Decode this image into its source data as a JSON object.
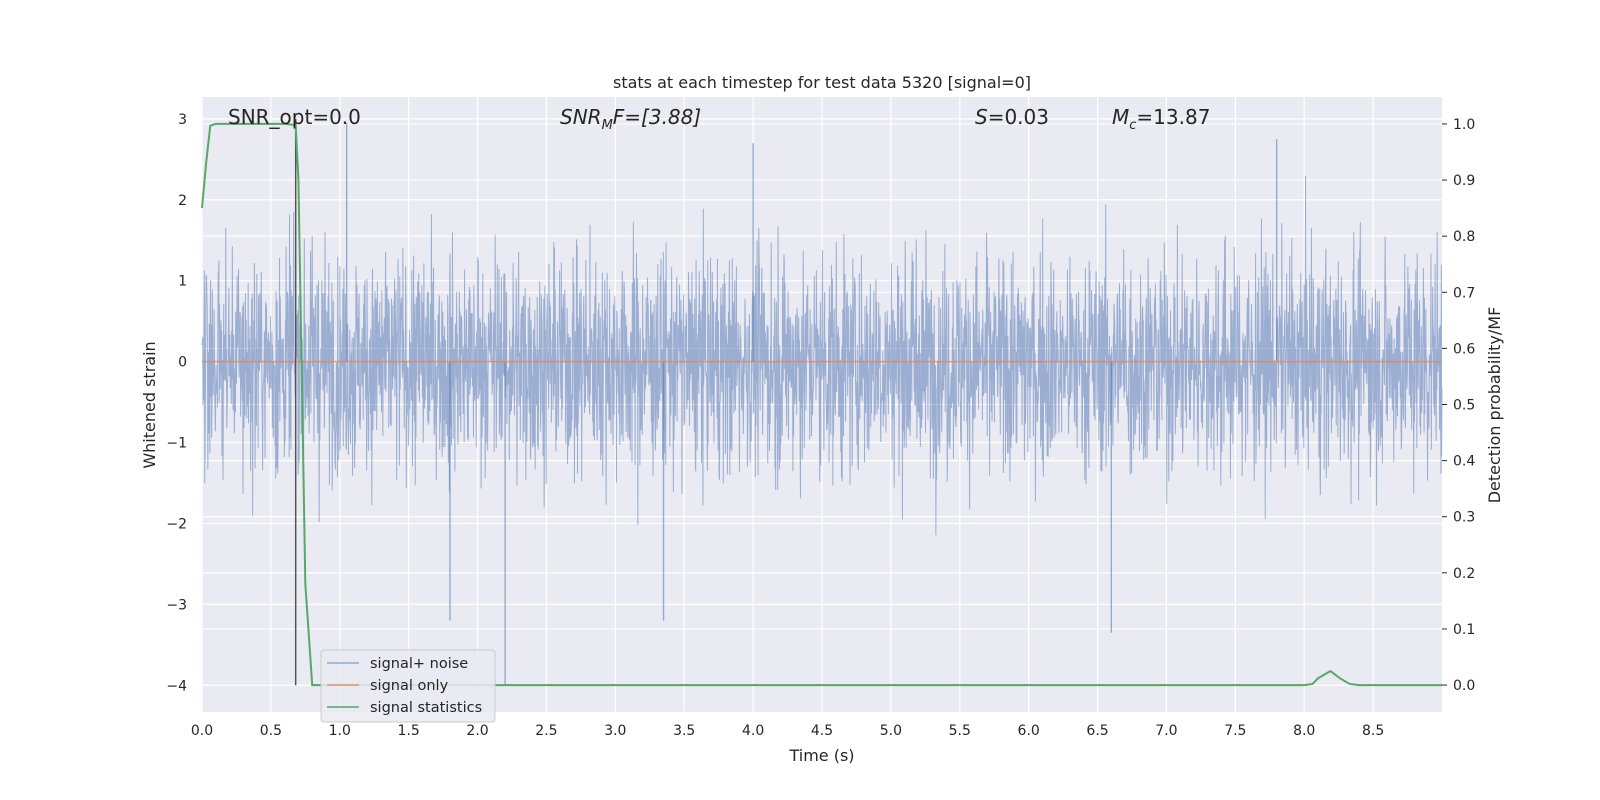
{
  "chart_data": {
    "type": "line",
    "title": "stats at each timestep for test data 5320 [signal=0]",
    "xlabel": "Time (s)",
    "ylabel_left": "Whitened strain",
    "ylabel_right": "Detection probability/MF",
    "xlim": [
      0,
      9.0
    ],
    "ylim_left": [
      -4.33,
      3.27
    ],
    "ylim_right": [
      -0.048,
      1.048
    ],
    "x_ticks": [
      "0.0",
      "0.5",
      "1.0",
      "1.5",
      "2.0",
      "2.5",
      "3.0",
      "3.5",
      "4.0",
      "4.5",
      "5.0",
      "5.5",
      "6.0",
      "6.5",
      "7.0",
      "7.5",
      "8.0",
      "8.5"
    ],
    "y_ticks_left": [
      "3",
      "2",
      "1",
      "0",
      "−1",
      "−2",
      "−3",
      "−4"
    ],
    "y_ticks_right": [
      "1.0",
      "0.9",
      "0.8",
      "0.7",
      "0.6",
      "0.5",
      "0.4",
      "0.3",
      "0.2",
      "0.1",
      "0.0"
    ],
    "annotations": {
      "snr_opt": "SNR_opt=0.0",
      "snr_mf_label": "SNR",
      "snr_mf_sub": "M",
      "snr_mf_rest": "F=[3.88]",
      "s_label": "S",
      "s_rest": "=0.03",
      "mc_label": "M",
      "mc_sub": "c",
      "mc_rest": "=13.87"
    },
    "legend": {
      "location": "lower-left",
      "entries": [
        "signal+ noise",
        "signal only",
        "signal statistics"
      ]
    },
    "series": [
      {
        "name": "signal+ noise",
        "axis": "left",
        "color": "#4c72b0",
        "style": "dense noise, approx. unit variance",
        "envelope_upper": 2.5,
        "envelope_lower": -2.0,
        "notable_extremes": [
          {
            "x": 1.05,
            "y": 2.95
          },
          {
            "x": 1.8,
            "y": -3.2
          },
          {
            "x": 2.2,
            "y": -4.0
          },
          {
            "x": 3.35,
            "y": -3.2
          },
          {
            "x": 6.6,
            "y": -3.35
          },
          {
            "x": 4.0,
            "y": 2.7
          },
          {
            "x": 7.8,
            "y": 2.75
          }
        ]
      },
      {
        "name": "signal only",
        "axis": "left",
        "color": "#dd8452",
        "x": [
          0,
          9.0
        ],
        "y": [
          0,
          0
        ]
      },
      {
        "name": "signal statistics",
        "axis": "right",
        "color": "#55a868",
        "x": [
          0.0,
          0.03,
          0.06,
          0.1,
          0.3,
          0.5,
          0.6,
          0.68,
          0.7,
          0.75,
          0.8,
          0.82,
          8.0,
          8.06,
          8.1,
          8.19,
          8.26,
          8.33,
          8.4,
          9.0
        ],
        "y": [
          0.85,
          0.93,
          0.997,
          1.0,
          1.0,
          1.0,
          1.0,
          0.998,
          0.9,
          0.18,
          0.0,
          0.0,
          0.0,
          0.002,
          0.012,
          0.025,
          0.012,
          0.002,
          0.0,
          0.0
        ]
      }
    ],
    "vertical_marker": {
      "x": 0.68,
      "y_range": [
        -4.0,
        3.0
      ],
      "color": "#555555"
    },
    "colors": {
      "plot_background": "#eaeaf2",
      "grid": "#ffffff",
      "noise": "#4c72b0",
      "signal": "#dd8452",
      "statistics": "#55a868"
    },
    "grid": true
  }
}
